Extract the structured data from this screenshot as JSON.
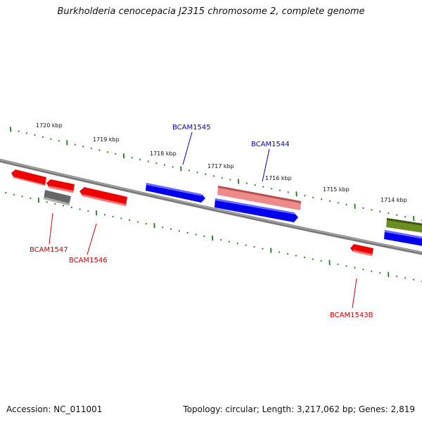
{
  "title": "Burkholderia cenocepacia J2315 chromosome 2, complete genome",
  "footer": {
    "accession": "Accession: NC_011001",
    "stats": "Topology: circular; Length: 3,217,062 bp; Genes: 2,819"
  },
  "colors": {
    "backbone": "#808080",
    "forward_gene": "#0000ee",
    "reverse_gene": "#ee0000",
    "pseudogene_forward": "#ee8888",
    "pseudogene_reverse": "#666666",
    "other_feature": "#6b8e23",
    "scale_ticks": "#1a7a1a",
    "forward_label": "#0000cc",
    "reverse_label": "#cc0000"
  },
  "scale_labels": [
    "1720 kbp",
    "1719 kbp",
    "1718 kbp",
    "1717 kbp",
    "1716 kbp",
    "1715 kbp",
    "1714 kbp"
  ],
  "gene_labels": {
    "forward": [
      "BCAM1545",
      "BCAM1544"
    ],
    "reverse": [
      "BCAM1547",
      "BCAM1546",
      "BCAM1543B"
    ]
  }
}
